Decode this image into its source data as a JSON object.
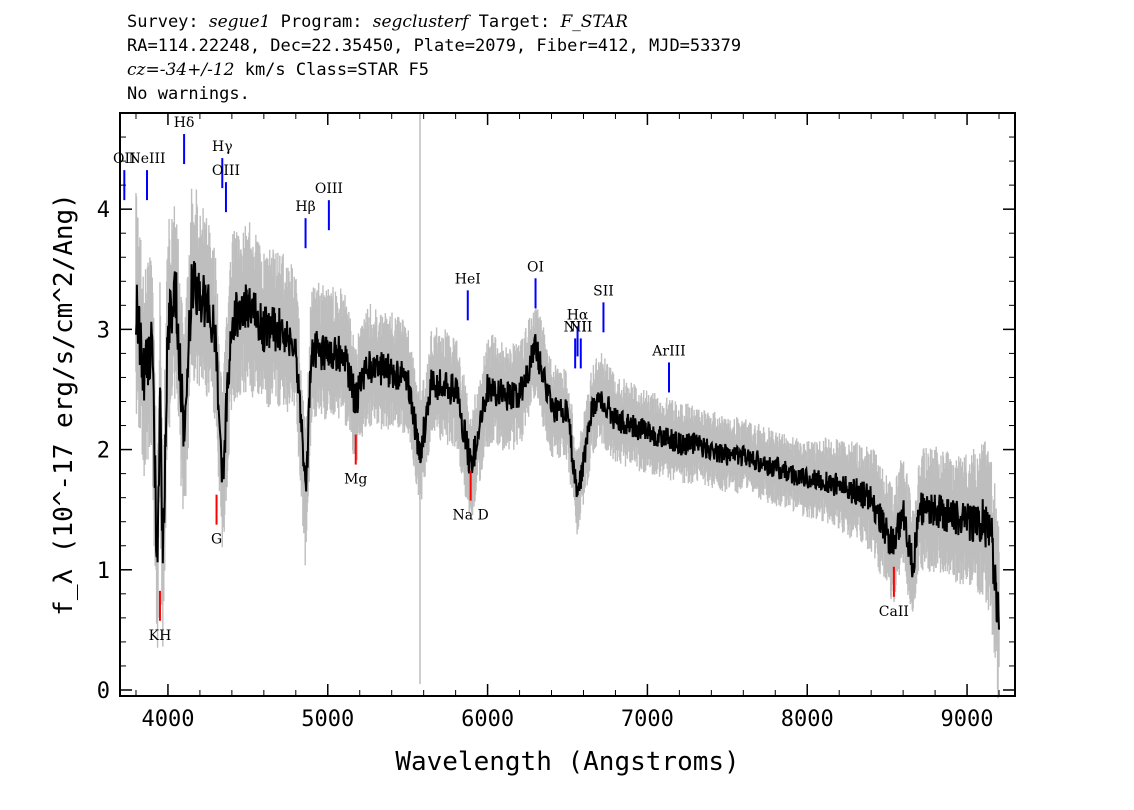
{
  "header": {
    "line1": {
      "survey_label": "Survey: ",
      "survey": "segue1",
      "program_label": " Program: ",
      "program": "segclusterf",
      "target_label": " Target: ",
      "target": "F_STAR"
    },
    "line2": "RA=114.22248, Dec=22.35450, Plate=2079, Fiber=412, MJD=53379",
    "line3": {
      "cz_label": "cz=",
      "cz": "-34+/-12",
      "rest": " km/s Class=STAR F5"
    },
    "line4": "No warnings."
  },
  "chart_data": {
    "type": "line",
    "xlabel": "Wavelength (Angstroms)",
    "ylabel": "f_λ (10^-17 erg/s/cm^2/Ang)",
    "xlim": [
      3700,
      9300
    ],
    "ylim": [
      -0.05,
      4.8
    ],
    "xticks": [
      4000,
      5000,
      6000,
      7000,
      8000,
      9000
    ],
    "yticks": [
      0,
      1,
      2,
      3,
      4
    ],
    "series": [
      {
        "role": "flux",
        "color": "#000000",
        "points": [
          [
            3800,
            3.2
          ],
          [
            3850,
            2.6
          ],
          [
            3900,
            2.9
          ],
          [
            3933,
            0.95
          ],
          [
            3950,
            2.5
          ],
          [
            3968,
            1.1
          ],
          [
            4000,
            3.0
          ],
          [
            4050,
            3.3
          ],
          [
            4101,
            2.1
          ],
          [
            4150,
            3.4
          ],
          [
            4200,
            3.3
          ],
          [
            4250,
            3.2
          ],
          [
            4300,
            2.9
          ],
          [
            4340,
            1.75
          ],
          [
            4400,
            3.1
          ],
          [
            4500,
            3.2
          ],
          [
            4600,
            3.0
          ],
          [
            4700,
            3.0
          ],
          [
            4800,
            2.9
          ],
          [
            4861,
            1.6
          ],
          [
            4900,
            2.85
          ],
          [
            5000,
            2.8
          ],
          [
            5100,
            2.8
          ],
          [
            5175,
            2.4
          ],
          [
            5250,
            2.7
          ],
          [
            5400,
            2.65
          ],
          [
            5500,
            2.6
          ],
          [
            5577,
            1.95
          ],
          [
            5650,
            2.55
          ],
          [
            5800,
            2.5
          ],
          [
            5895,
            1.85
          ],
          [
            6000,
            2.5
          ],
          [
            6100,
            2.45
          ],
          [
            6200,
            2.45
          ],
          [
            6300,
            2.85
          ],
          [
            6400,
            2.35
          ],
          [
            6500,
            2.3
          ],
          [
            6563,
            1.6
          ],
          [
            6650,
            2.3
          ],
          [
            6700,
            2.45
          ],
          [
            6800,
            2.25
          ],
          [
            6900,
            2.2
          ],
          [
            7000,
            2.15
          ],
          [
            7100,
            2.1
          ],
          [
            7200,
            2.05
          ],
          [
            7300,
            2.05
          ],
          [
            7400,
            2.0
          ],
          [
            7500,
            1.95
          ],
          [
            7600,
            1.95
          ],
          [
            7700,
            1.9
          ],
          [
            7800,
            1.85
          ],
          [
            7900,
            1.8
          ],
          [
            8000,
            1.75
          ],
          [
            8100,
            1.75
          ],
          [
            8200,
            1.7
          ],
          [
            8300,
            1.65
          ],
          [
            8400,
            1.6
          ],
          [
            8498,
            1.3
          ],
          [
            8542,
            1.2
          ],
          [
            8600,
            1.5
          ],
          [
            8662,
            1.0
          ],
          [
            8700,
            1.5
          ],
          [
            8800,
            1.5
          ],
          [
            8900,
            1.45
          ],
          [
            9000,
            1.4
          ],
          [
            9100,
            1.4
          ],
          [
            9150,
            1.3
          ],
          [
            9200,
            0.55
          ]
        ]
      },
      {
        "role": "error-band",
        "color": "#bebebe",
        "points": [
          [
            3800,
            0.6
          ],
          [
            4000,
            0.55
          ],
          [
            4500,
            0.45
          ],
          [
            5000,
            0.35
          ],
          [
            5500,
            0.3
          ],
          [
            6000,
            0.3
          ],
          [
            6500,
            0.25
          ],
          [
            7000,
            0.22
          ],
          [
            7500,
            0.2
          ],
          [
            8000,
            0.2
          ],
          [
            8500,
            0.3
          ],
          [
            9000,
            0.35
          ],
          [
            9200,
            0.5
          ]
        ]
      }
    ],
    "sky_line": {
      "x": 5577
    },
    "emission_lines": [
      {
        "label": "OII",
        "x": 3727,
        "y": 4.2
      },
      {
        "label": "NeIII",
        "x": 3869,
        "y": 4.2
      },
      {
        "label": "Hδ",
        "x": 4101,
        "y": 4.5
      },
      {
        "label": "Hγ",
        "x": 4340,
        "y": 4.3
      },
      {
        "label": "OIII",
        "x": 4363,
        "y": 4.1
      },
      {
        "label": "Hβ",
        "x": 4861,
        "y": 3.8
      },
      {
        "label": "OIII",
        "x": 5007,
        "y": 3.95
      },
      {
        "label": "HeI",
        "x": 5876,
        "y": 3.2
      },
      {
        "label": "OI",
        "x": 6300,
        "y": 3.3
      },
      {
        "label": "NII",
        "x": 6548,
        "y": 2.8
      },
      {
        "label": "Hα",
        "x": 6563,
        "y": 2.9
      },
      {
        "label": "NII",
        "x": 6583,
        "y": 2.8
      },
      {
        "label": "SII",
        "x": 6725,
        "y": 3.1
      },
      {
        "label": "ArIII",
        "x": 7135,
        "y": 2.6
      }
    ],
    "absorption_lines": [
      {
        "label": "KH",
        "x": 3950,
        "y": 0.7
      },
      {
        "label": "G",
        "x": 4304,
        "y": 1.5
      },
      {
        "label": "Mg",
        "x": 5175,
        "y": 2.0
      },
      {
        "label": "Na D",
        "x": 5894,
        "y": 1.7
      },
      {
        "label": "CaII",
        "x": 8542,
        "y": 0.9
      }
    ]
  }
}
